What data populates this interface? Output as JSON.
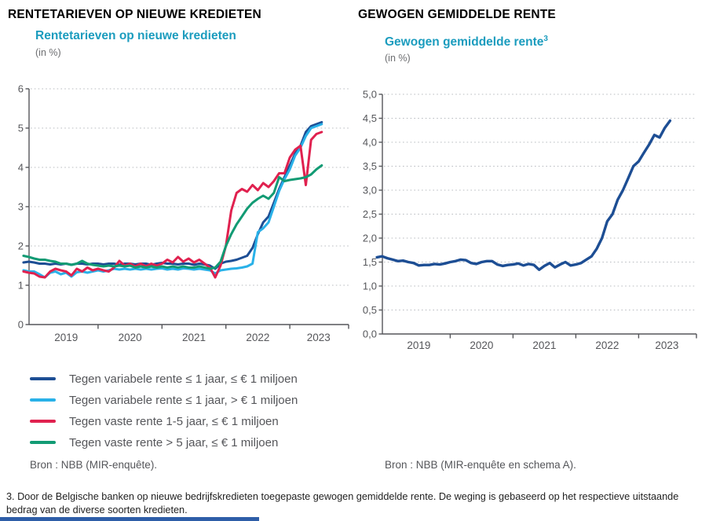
{
  "left_panel": {
    "heading": "RENTETARIEVEN OP NIEUWE KREDIETEN",
    "subtitle": "Rentetarieven op nieuwe kredieten",
    "unit": "(in %)",
    "source": "Bron : NBB (MIR-enquête).",
    "legend": [
      {
        "label": "Tegen variabele rente ≤ 1 jaar, ≤ € 1 miljoen",
        "color": "#1d4e94"
      },
      {
        "label": "Tegen variabele rente ≤ 1 jaar, > € 1 miljoen",
        "color": "#29b1e8"
      },
      {
        "label": "Tegen vaste rente 1-5 jaar, ≤ € 1 miljoen",
        "color": "#e0214f"
      },
      {
        "label": "Tegen vaste rente > 5 jaar, ≤ € 1 miljoen",
        "color": "#129b74"
      }
    ]
  },
  "right_panel": {
    "heading": "GEWOGEN GEMIDDELDE RENTE",
    "subtitle": "Gewogen gemiddelde rente",
    "subtitle_sup": "3",
    "unit": "(in %)",
    "source": "Bron : NBB (MIR-enquête en schema A)."
  },
  "footnote": "3. Door de Belgische banken op nieuwe bedrijfskredieten toegepaste gewogen gemiddelde rente. De weging is gebaseerd op het respectieve uitstaande bedrag van de diverse soorten kredieten.",
  "colors": {
    "heading": "#000000",
    "subtitle_accent": "#1b9cbe",
    "axis": "#55565a",
    "grid": "#b9bcc1",
    "text_gray": "#55565a",
    "navy": "#1d4e94",
    "cyan": "#29b1e8",
    "red": "#e0214f",
    "green": "#129b74",
    "bottom_rule": "#2e5ea8"
  },
  "chart_data": [
    {
      "id": "rentetarieven",
      "type": "line",
      "title": "Rentetarieven op nieuwe kredieten",
      "ylabel": "in %",
      "grid": "dotted-horizontal",
      "legend_position": "below",
      "x_start": 2018.8333,
      "x_step": 0.083333,
      "xlim": [
        2018.92,
        2023.92
      ],
      "ylim": [
        0,
        6
      ],
      "yticks": [
        0,
        1,
        2,
        3,
        4,
        5,
        6
      ],
      "ytick_labels": [
        "0",
        "1",
        "2",
        "3",
        "4",
        "5",
        "6"
      ],
      "xticks": [
        2020,
        2021,
        2022,
        2023,
        2023.92
      ],
      "xtick_labels": [
        {
          "x": 2019.5,
          "label": "2019"
        },
        {
          "x": 2020.5,
          "label": "2020"
        },
        {
          "x": 2021.5,
          "label": "2021"
        },
        {
          "x": 2022.5,
          "label": "2022"
        },
        {
          "x": 2023.45,
          "label": "2023"
        }
      ],
      "series": [
        {
          "id": "variabele-lte1jaar-lte1mln",
          "name": "Tegen variabele rente ≤ 1 jaar, ≤ € 1 miljoen",
          "color": "#1d4e94",
          "values": [
            1.58,
            1.6,
            1.58,
            1.55,
            1.55,
            1.53,
            1.55,
            1.53,
            1.55,
            1.52,
            1.55,
            1.55,
            1.53,
            1.55,
            1.55,
            1.53,
            1.55,
            1.55,
            1.52,
            1.55,
            1.55,
            1.53,
            1.55,
            1.55,
            1.52,
            1.55,
            1.57,
            1.55,
            1.55,
            1.53,
            1.55,
            1.55,
            1.52,
            1.55,
            1.53,
            1.5,
            1.42,
            1.55,
            1.6,
            1.62,
            1.65,
            1.7,
            1.75,
            1.95,
            2.3,
            2.6,
            2.75,
            3.1,
            3.45,
            3.75,
            4.05,
            4.35,
            4.55,
            4.9,
            5.05,
            5.1,
            5.15
          ]
        },
        {
          "id": "variabele-lte1jaar-gt1mln",
          "name": "Tegen variabele rente ≤ 1 jaar, > € 1 miljoen",
          "color": "#29b1e8",
          "values": [
            1.38,
            1.35,
            1.35,
            1.28,
            1.2,
            1.32,
            1.35,
            1.28,
            1.32,
            1.22,
            1.33,
            1.35,
            1.32,
            1.35,
            1.38,
            1.35,
            1.38,
            1.42,
            1.4,
            1.42,
            1.4,
            1.42,
            1.4,
            1.42,
            1.4,
            1.42,
            1.43,
            1.4,
            1.42,
            1.4,
            1.43,
            1.42,
            1.4,
            1.42,
            1.4,
            1.38,
            1.3,
            1.38,
            1.4,
            1.42,
            1.43,
            1.45,
            1.48,
            1.55,
            2.35,
            2.45,
            2.6,
            3.0,
            3.4,
            3.7,
            3.95,
            4.3,
            4.5,
            4.8,
            5.0,
            5.05,
            5.1
          ]
        },
        {
          "id": "vaste-1-5jaar-lte1mln",
          "name": "Tegen vaste rente 1-5 jaar, ≤ € 1 miljoen",
          "color": "#e0214f",
          "values": [
            1.35,
            1.32,
            1.3,
            1.22,
            1.2,
            1.35,
            1.42,
            1.38,
            1.35,
            1.25,
            1.42,
            1.35,
            1.45,
            1.38,
            1.42,
            1.38,
            1.35,
            1.45,
            1.62,
            1.5,
            1.55,
            1.48,
            1.55,
            1.48,
            1.55,
            1.5,
            1.55,
            1.65,
            1.58,
            1.72,
            1.6,
            1.68,
            1.58,
            1.65,
            1.55,
            1.45,
            1.2,
            1.5,
            2.0,
            2.9,
            3.35,
            3.45,
            3.38,
            3.55,
            3.42,
            3.6,
            3.5,
            3.65,
            3.85,
            3.85,
            4.25,
            4.45,
            4.55,
            3.55,
            4.7,
            4.85,
            4.9
          ]
        },
        {
          "id": "vaste-gt5jaar-lte1mln",
          "name": "Tegen vaste rente > 5 jaar, ≤ € 1 miljoen",
          "color": "#129b74",
          "values": [
            1.75,
            1.72,
            1.68,
            1.65,
            1.65,
            1.62,
            1.6,
            1.55,
            1.55,
            1.52,
            1.55,
            1.62,
            1.55,
            1.52,
            1.5,
            1.48,
            1.5,
            1.48,
            1.5,
            1.48,
            1.5,
            1.45,
            1.48,
            1.45,
            1.48,
            1.45,
            1.48,
            1.45,
            1.48,
            1.45,
            1.48,
            1.45,
            1.45,
            1.48,
            1.45,
            1.42,
            1.45,
            1.6,
            2.0,
            2.3,
            2.55,
            2.75,
            2.95,
            3.1,
            3.2,
            3.28,
            3.2,
            3.35,
            3.75,
            3.65,
            3.68,
            3.7,
            3.72,
            3.75,
            3.82,
            3.95,
            4.05
          ]
        }
      ]
    },
    {
      "id": "gewogen-gemiddelde-rente",
      "type": "line",
      "title": "Gewogen gemiddelde rente",
      "ylabel": "in %",
      "grid": "dotted-horizontal",
      "legend_position": "none",
      "x_start": 2018.8333,
      "x_step": 0.083333,
      "xlim": [
        2018.92,
        2023.92
      ],
      "ylim": [
        0,
        5
      ],
      "yticks": [
        0,
        0.5,
        1,
        1.5,
        2,
        2.5,
        3,
        3.5,
        4,
        4.5,
        5
      ],
      "ytick_labels": [
        "0,0",
        "0,5",
        "1,0",
        "1,5",
        "2,0",
        "2,5",
        "3,0",
        "3,5",
        "4,0",
        "4,5",
        "5,0"
      ],
      "xticks": [
        2020,
        2021,
        2022,
        2023,
        2023.92
      ],
      "xtick_labels": [
        {
          "x": 2019.5,
          "label": "2019"
        },
        {
          "x": 2020.5,
          "label": "2020"
        },
        {
          "x": 2021.5,
          "label": "2021"
        },
        {
          "x": 2022.5,
          "label": "2022"
        },
        {
          "x": 2023.45,
          "label": "2023"
        }
      ],
      "series": [
        {
          "id": "gewogen-gemiddelde-rente",
          "name": "Gewogen gemiddelde rente",
          "color": "#1d4e94",
          "values": [
            1.6,
            1.62,
            1.58,
            1.55,
            1.52,
            1.53,
            1.5,
            1.48,
            1.43,
            1.44,
            1.44,
            1.46,
            1.45,
            1.47,
            1.5,
            1.52,
            1.55,
            1.54,
            1.48,
            1.46,
            1.5,
            1.52,
            1.52,
            1.45,
            1.42,
            1.44,
            1.45,
            1.47,
            1.43,
            1.46,
            1.44,
            1.34,
            1.42,
            1.48,
            1.39,
            1.45,
            1.5,
            1.43,
            1.45,
            1.48,
            1.55,
            1.62,
            1.78,
            2.0,
            2.35,
            2.5,
            2.8,
            3.0,
            3.25,
            3.5,
            3.6,
            3.78,
            3.95,
            4.15,
            4.1,
            4.3,
            4.45
          ]
        }
      ]
    }
  ]
}
